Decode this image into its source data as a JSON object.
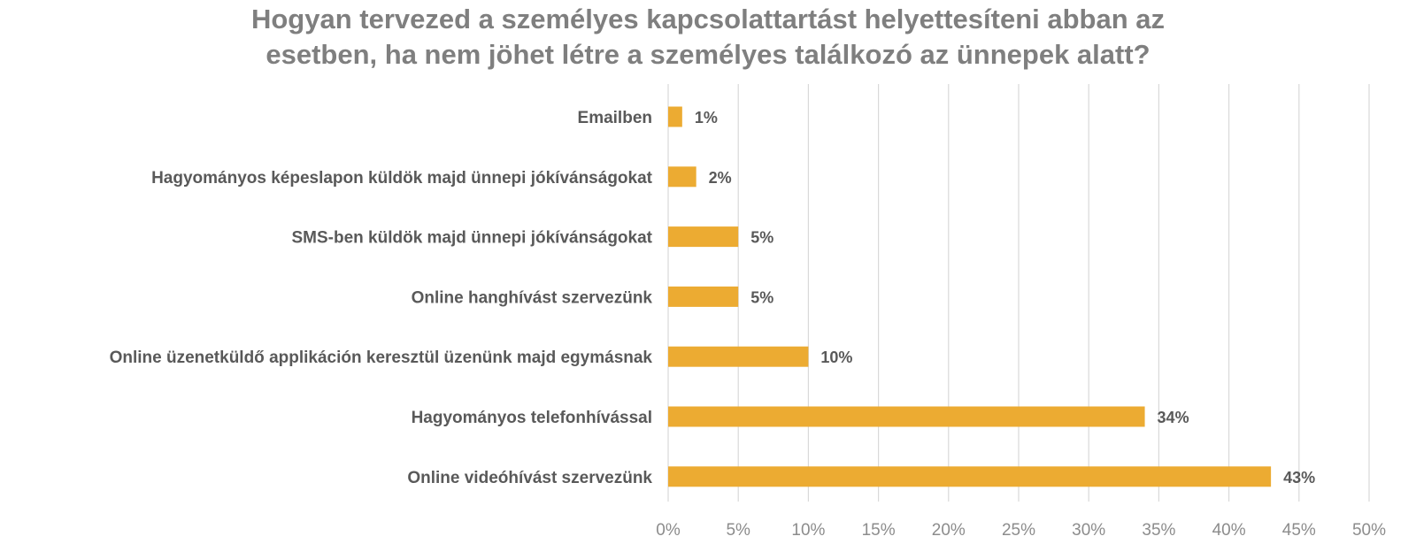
{
  "chart_data": {
    "type": "bar",
    "orientation": "horizontal",
    "title_lines": [
      "Hogyan tervezed a személyes kapcsolattartást helyettesíteni abban az",
      "esetben, ha nem jöhet létre a személyes találkozó az ünnepek alatt?"
    ],
    "categories": [
      "Emailben",
      "Hagyományos képeslapon küldök majd ünnepi jókívánságokat",
      "SMS-ben küldök majd ünnepi jókívánságokat",
      "Online hanghívást szervezünk",
      "Online üzenetküldő applikáción keresztül üzenünk majd egymásnak",
      "Hagyományos telefonhívással",
      "Online videóhívást szervezünk"
    ],
    "values": [
      1,
      2,
      5,
      5,
      10,
      34,
      43
    ],
    "value_labels": [
      "1%",
      "2%",
      "5%",
      "5%",
      "10%",
      "34%",
      "43%"
    ],
    "xlim": [
      0,
      50
    ],
    "xticks": [
      "0%",
      "5%",
      "10%",
      "15%",
      "20%",
      "25%",
      "30%",
      "35%",
      "40%",
      "45%",
      "50%"
    ],
    "xlabel": "",
    "ylabel": "",
    "grid": "vertical",
    "legend": "none",
    "colors": {
      "bar": "#ecab32",
      "grid": "#d9d9d9",
      "title": "#7f7f7f",
      "label": "#595959",
      "tick": "#8c8c8c"
    }
  }
}
